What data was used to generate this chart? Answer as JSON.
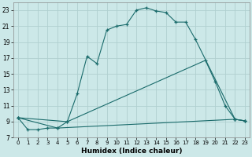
{
  "xlabel": "Humidex (Indice chaleur)",
  "bg_color": "#cce8e8",
  "grid_color": "#b0d0d0",
  "line_color": "#1a6b6b",
  "xlim": [
    -0.5,
    23.5
  ],
  "ylim": [
    7,
    24
  ],
  "xticks": [
    0,
    1,
    2,
    3,
    4,
    5,
    6,
    7,
    8,
    9,
    10,
    11,
    12,
    13,
    14,
    15,
    16,
    17,
    18,
    19,
    20,
    21,
    22,
    23
  ],
  "yticks": [
    7,
    9,
    11,
    13,
    15,
    17,
    19,
    21,
    23
  ],
  "curve1_x": [
    0,
    1,
    2,
    3,
    4,
    5,
    6,
    7,
    8,
    9,
    10,
    11,
    12,
    13,
    14,
    15,
    16,
    17,
    18,
    22,
    23
  ],
  "curve1_y": [
    9.5,
    8.0,
    8.0,
    8.2,
    8.2,
    9.0,
    12.5,
    17.2,
    16.3,
    20.5,
    21.0,
    21.2,
    23.0,
    23.3,
    22.9,
    22.7,
    21.5,
    21.5,
    19.3,
    9.3,
    9.1
  ],
  "curve2_x": [
    0,
    5,
    19,
    20,
    21,
    22,
    23
  ],
  "curve2_y": [
    9.5,
    9.0,
    16.7,
    14.0,
    11.0,
    9.3,
    9.1
  ],
  "curve3_x": [
    0,
    4,
    22,
    23
  ],
  "curve3_y": [
    9.5,
    8.2,
    9.3,
    9.1
  ]
}
